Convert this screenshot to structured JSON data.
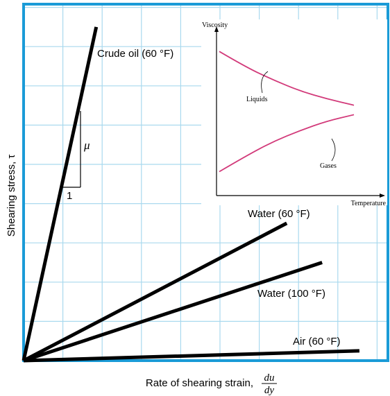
{
  "chart_data": [
    {
      "type": "line",
      "xlabel": "Rate of shearing strain,",
      "xlabel_fraction": {
        "numerator": "du",
        "denominator": "dy"
      },
      "ylabel": "Shearing stress, τ",
      "grid": true,
      "colors": {
        "axis": "#1a9bd7",
        "grid": "#a9d9ee",
        "lines": "#000000"
      },
      "x_range": [
        0,
        9
      ],
      "y_range": [
        0,
        9
      ],
      "series": [
        {
          "name": "Crude oil (60 °F)",
          "x": [
            0,
            1.85
          ],
          "y": [
            0,
            8.5
          ]
        },
        {
          "name": "Water (60 °F)",
          "x": [
            0,
            6.7
          ],
          "y": [
            0,
            3.5
          ]
        },
        {
          "name": "Water (100 °F)",
          "x": [
            0,
            7.6
          ],
          "y": [
            0,
            2.5
          ]
        },
        {
          "name": "Air (60 °F)",
          "x": [
            0,
            8.55
          ],
          "y": [
            0,
            0.25
          ]
        }
      ],
      "slope_triangle": {
        "run_label": "1",
        "rise_label": "μ"
      }
    },
    {
      "type": "line",
      "xlabel": "Temperature",
      "ylabel": "Viscosity",
      "color": "#d23a7a",
      "x_range": [
        0,
        10
      ],
      "y_range": [
        0,
        10
      ],
      "series": [
        {
          "name": "Liquids",
          "x": [
            0,
            2,
            4,
            6,
            8,
            10
          ],
          "y": [
            8.5,
            7.5,
            6.7,
            6.0,
            5.5,
            5.1
          ]
        },
        {
          "name": "Gases",
          "x": [
            0,
            2,
            4,
            6,
            8,
            10
          ],
          "y": [
            0.9,
            1.9,
            2.8,
            3.5,
            4.1,
            4.5
          ]
        }
      ]
    }
  ]
}
